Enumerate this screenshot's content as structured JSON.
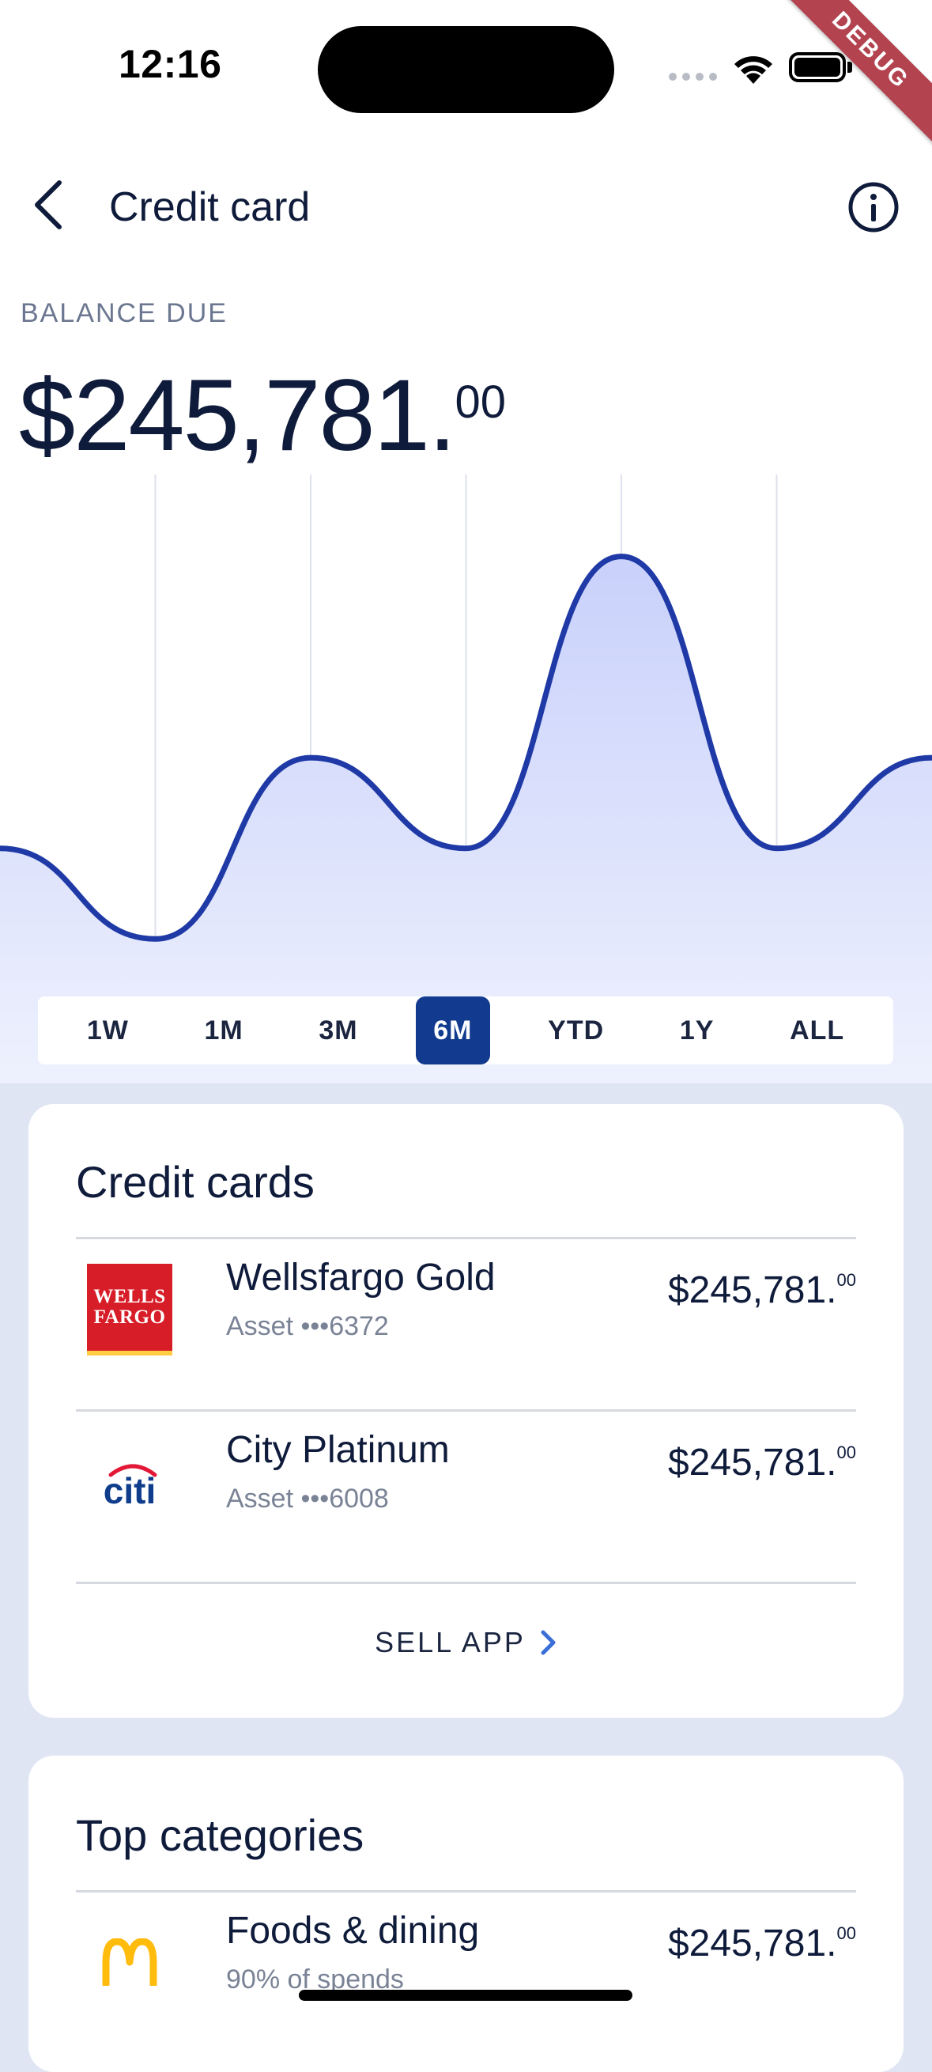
{
  "status_bar": {
    "time": "12:16",
    "debug_label": "DEBUG"
  },
  "header": {
    "title": "Credit card"
  },
  "balance": {
    "label": "BALANCE DUE",
    "whole": "$245,781.",
    "cents": "00"
  },
  "chart_data": {
    "type": "area",
    "series": [
      {
        "values": [
          0.42,
          0.24,
          0.6,
          0.42,
          1.0,
          0.42,
          0.6
        ]
      }
    ],
    "ylim": [
      0,
      1.1
    ],
    "grid": "vertical",
    "line_color": "#1f3aa6",
    "fill_color": "#d6dcfb"
  },
  "time_ranges": {
    "options": [
      "1W",
      "1M",
      "3M",
      "6M",
      "YTD",
      "1Y",
      "ALL"
    ],
    "selected": "6M"
  },
  "credit_cards": {
    "title": "Credit cards",
    "items": [
      {
        "name": "Wellsfargo Gold",
        "sub": "Asset •••6372",
        "amount_whole": "$245,781.",
        "amount_cents": "00",
        "logo_text": [
          "WELLS",
          "FARGO"
        ]
      },
      {
        "name": "City Platinum",
        "sub": "Asset •••6008",
        "amount_whole": "$245,781.",
        "amount_cents": "00",
        "logo_text": "citi"
      }
    ],
    "action_label": "SELL APP"
  },
  "top_categories": {
    "title": "Top categories",
    "items": [
      {
        "name": "Foods & dining",
        "sub": "90% of spends",
        "amount_whole": "$245,781.",
        "amount_cents": "00"
      }
    ]
  },
  "colors": {
    "accent": "#123b8f",
    "background": "#dfe5f3",
    "text": "#0f1b3a"
  }
}
